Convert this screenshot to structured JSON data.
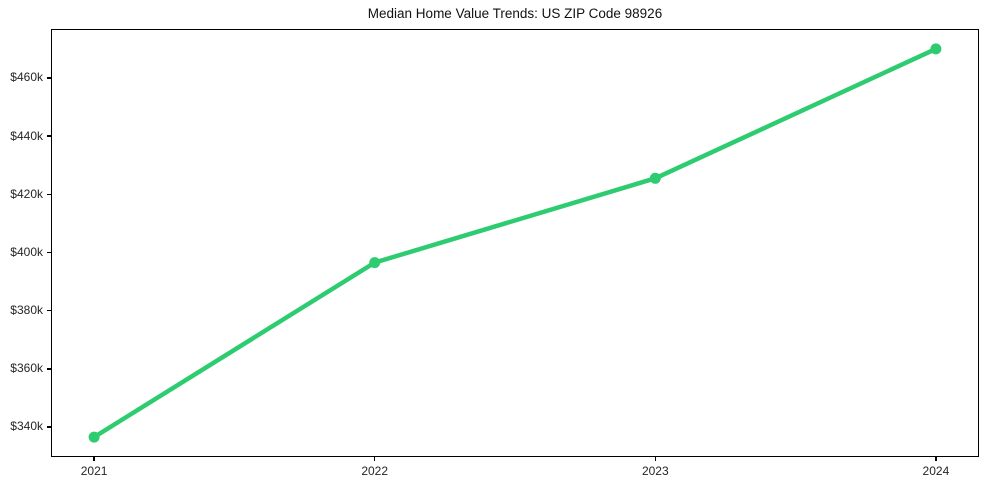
{
  "chart_data": {
    "type": "line",
    "title": "Median Home Value Trends: US ZIP Code 98926",
    "x": [
      2021,
      2022,
      2023,
      2024
    ],
    "x_tick_labels": [
      "2021",
      "2022",
      "2023",
      "2024"
    ],
    "series": [
      {
        "values": [
          336500,
          396500,
          425500,
          470000
        ],
        "color": "#2ecc71",
        "marker": "circle"
      }
    ],
    "y_tick_values": [
      340000,
      360000,
      380000,
      400000,
      420000,
      440000,
      460000
    ],
    "y_tick_labels": [
      "$340k",
      "$360k",
      "$380k",
      "$400k",
      "$420k",
      "$440k",
      "$460k"
    ],
    "xlim": [
      2020.85,
      2024.15
    ],
    "ylim": [
      330000,
      476500
    ],
    "grid": false,
    "legend": "none",
    "xlabel": "",
    "ylabel": ""
  }
}
